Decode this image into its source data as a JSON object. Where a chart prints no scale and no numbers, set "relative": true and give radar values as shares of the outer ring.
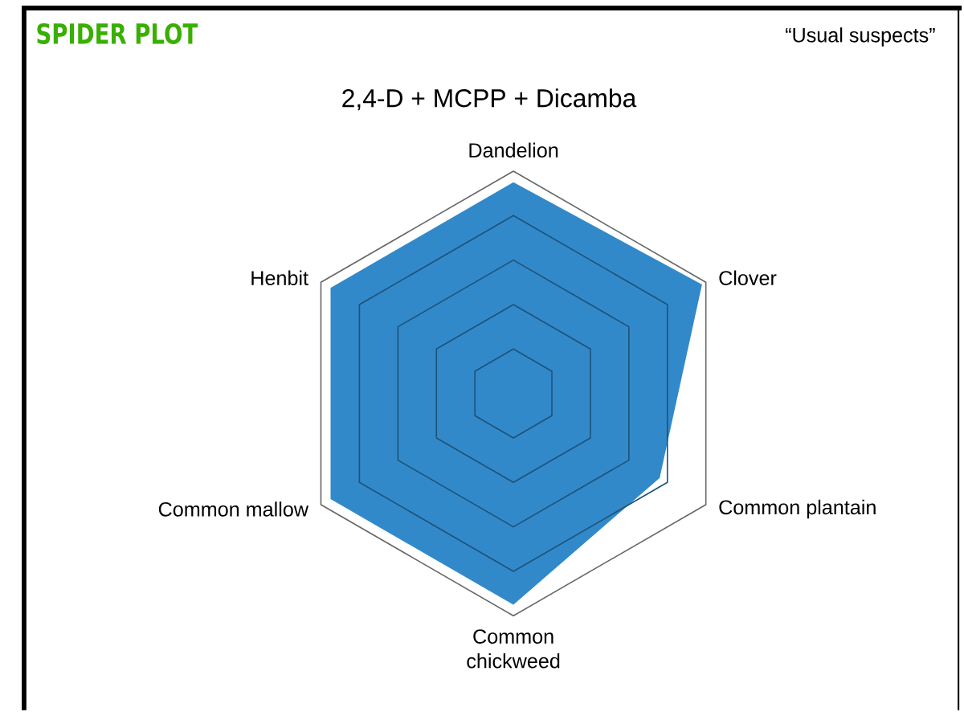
{
  "chart_data": {
    "type": "radar",
    "title": "2,4-D + MCPP + Dicamba",
    "subtitle": "“Usual suspects”",
    "annotations": [
      "SPIDER PLOT"
    ],
    "categories": [
      "Dandelion",
      "Clover",
      "Common plantain",
      "Common chickweed",
      "Common mallow",
      "Henbit"
    ],
    "relative": true,
    "grid": true,
    "series": [
      {
        "color": "#3289c9",
        "values": [
          0.95,
          0.98,
          0.76,
          0.95,
          0.95,
          0.95
        ]
      }
    ]
  }
}
